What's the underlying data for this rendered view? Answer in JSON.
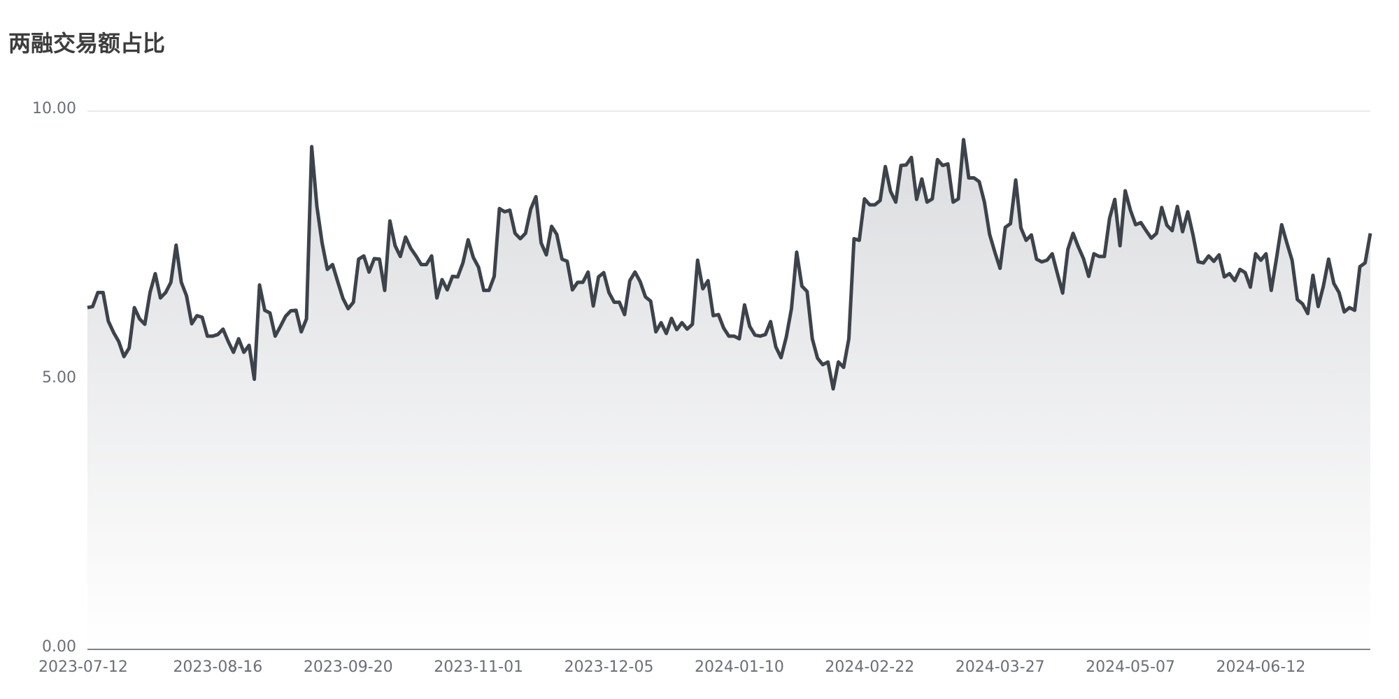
{
  "chart_data": {
    "type": "line",
    "title": "两融交易额占比",
    "categories": [
      "2023-07-12",
      null,
      null,
      null,
      null,
      null,
      null,
      null,
      null,
      null,
      null,
      null,
      null,
      null,
      null,
      null,
      null,
      null,
      null,
      null,
      null,
      null,
      null,
      null,
      null,
      "2023-08-16",
      null,
      null,
      null,
      null,
      null,
      null,
      null,
      null,
      null,
      null,
      null,
      null,
      null,
      null,
      null,
      null,
      null,
      null,
      null,
      null,
      null,
      null,
      null,
      null,
      "2023-09-20",
      null,
      null,
      null,
      null,
      null,
      null,
      null,
      null,
      null,
      null,
      null,
      null,
      null,
      null,
      null,
      null,
      null,
      null,
      null,
      null,
      null,
      null,
      null,
      null,
      "2023-11-01",
      null,
      null,
      null,
      null,
      null,
      null,
      null,
      null,
      null,
      null,
      null,
      null,
      null,
      null,
      null,
      null,
      null,
      null,
      null,
      null,
      null,
      null,
      null,
      null,
      "2023-12-05",
      null,
      null,
      null,
      null,
      null,
      null,
      null,
      null,
      null,
      null,
      null,
      null,
      null,
      null,
      null,
      null,
      null,
      null,
      null,
      null,
      null,
      null,
      null,
      null,
      "2024-01-10",
      null,
      null,
      null,
      null,
      null,
      null,
      null,
      null,
      null,
      null,
      null,
      null,
      null,
      null,
      null,
      null,
      null,
      null,
      null,
      null,
      null,
      null,
      null,
      null,
      "2024-02-22",
      null,
      null,
      null,
      null,
      null,
      null,
      null,
      null,
      null,
      null,
      null,
      null,
      null,
      null,
      null,
      null,
      null,
      null,
      null,
      null,
      null,
      null,
      null,
      null,
      "2024-03-27",
      null,
      null,
      null,
      null,
      null,
      null,
      null,
      null,
      null,
      null,
      null,
      null,
      null,
      null,
      null,
      null,
      null,
      null,
      null,
      null,
      null,
      null,
      null,
      null,
      "2024-05-07",
      null,
      null,
      null,
      null,
      null,
      null,
      null,
      null,
      null,
      null,
      null,
      null,
      null,
      null,
      null,
      null,
      null,
      null,
      null,
      null,
      null,
      null,
      null,
      null,
      "2024-06-12",
      null,
      null,
      null,
      null,
      null,
      null,
      null,
      null,
      null,
      null,
      null,
      null,
      null,
      null,
      null,
      null,
      null,
      null,
      null,
      null,
      null
    ],
    "values": [
      6.35,
      6.37,
      6.63,
      6.63,
      6.1,
      5.89,
      5.72,
      5.44,
      5.6,
      6.35,
      6.14,
      6.04,
      6.63,
      6.98,
      6.53,
      6.63,
      6.82,
      7.51,
      6.82,
      6.57,
      6.05,
      6.2,
      6.17,
      5.82,
      5.82,
      5.85,
      5.95,
      5.72,
      5.52,
      5.77,
      5.52,
      5.65,
      5.02,
      6.77,
      6.3,
      6.25,
      5.82,
      6.0,
      6.19,
      6.29,
      6.3,
      5.9,
      6.14,
      9.34,
      8.23,
      7.55,
      7.06,
      7.15,
      6.83,
      6.52,
      6.33,
      6.45,
      7.25,
      7.31,
      7.01,
      7.26,
      7.25,
      6.67,
      7.96,
      7.5,
      7.3,
      7.66,
      7.45,
      7.31,
      7.15,
      7.15,
      7.31,
      6.53,
      6.87,
      6.68,
      6.93,
      6.92,
      7.18,
      7.61,
      7.28,
      7.1,
      6.67,
      6.67,
      6.93,
      8.19,
      8.13,
      8.16,
      7.73,
      7.63,
      7.73,
      8.18,
      8.41,
      7.55,
      7.33,
      7.86,
      7.71,
      7.25,
      7.21,
      6.68,
      6.82,
      6.82,
      7.01,
      6.38,
      6.92,
      7.0,
      6.63,
      6.45,
      6.45,
      6.22,
      6.85,
      7.01,
      6.83,
      6.55,
      6.47,
      5.9,
      6.07,
      5.87,
      6.15,
      5.94,
      6.07,
      5.95,
      6.04,
      7.23,
      6.7,
      6.85,
      6.2,
      6.22,
      5.97,
      5.82,
      5.82,
      5.77,
      6.4,
      6.0,
      5.84,
      5.82,
      5.85,
      6.09,
      5.62,
      5.42,
      5.8,
      6.33,
      7.38,
      6.75,
      6.65,
      5.77,
      5.41,
      5.29,
      5.34,
      4.84,
      5.34,
      5.24,
      5.77,
      7.63,
      7.6,
      8.37,
      8.26,
      8.26,
      8.34,
      8.97,
      8.51,
      8.31,
      8.99,
      9.0,
      9.14,
      8.36,
      8.74,
      8.31,
      8.37,
      9.1,
      8.99,
      9.02,
      8.31,
      8.37,
      9.47,
      8.76,
      8.76,
      8.69,
      8.31,
      7.71,
      7.38,
      7.08,
      7.84,
      7.91,
      8.72,
      7.83,
      7.6,
      7.7,
      7.25,
      7.2,
      7.23,
      7.35,
      6.98,
      6.62,
      7.43,
      7.73,
      7.48,
      7.26,
      6.93,
      7.35,
      7.3,
      7.3,
      8.01,
      8.36,
      7.5,
      8.52,
      8.16,
      7.89,
      7.93,
      7.78,
      7.64,
      7.73,
      8.21,
      7.88,
      7.78,
      8.23,
      7.76,
      8.13,
      7.7,
      7.2,
      7.18,
      7.31,
      7.21,
      7.33,
      6.92,
      6.98,
      6.85,
      7.06,
      7.0,
      6.73,
      7.35,
      7.23,
      7.35,
      6.67,
      7.26,
      7.89,
      7.55,
      7.23,
      6.5,
      6.42,
      6.24,
      6.95,
      6.37,
      6.75,
      7.25,
      6.8,
      6.63,
      6.27,
      6.35,
      6.3,
      7.11,
      7.18,
      7.73
    ],
    "color": "#3d434b",
    "area": true,
    "ylim": [
      0,
      10
    ],
    "yticks": [
      {
        "value": 0,
        "label": "0.00"
      },
      {
        "value": 5,
        "label": "5.00"
      },
      {
        "value": 10,
        "label": "10.00"
      }
    ],
    "grid": true
  }
}
